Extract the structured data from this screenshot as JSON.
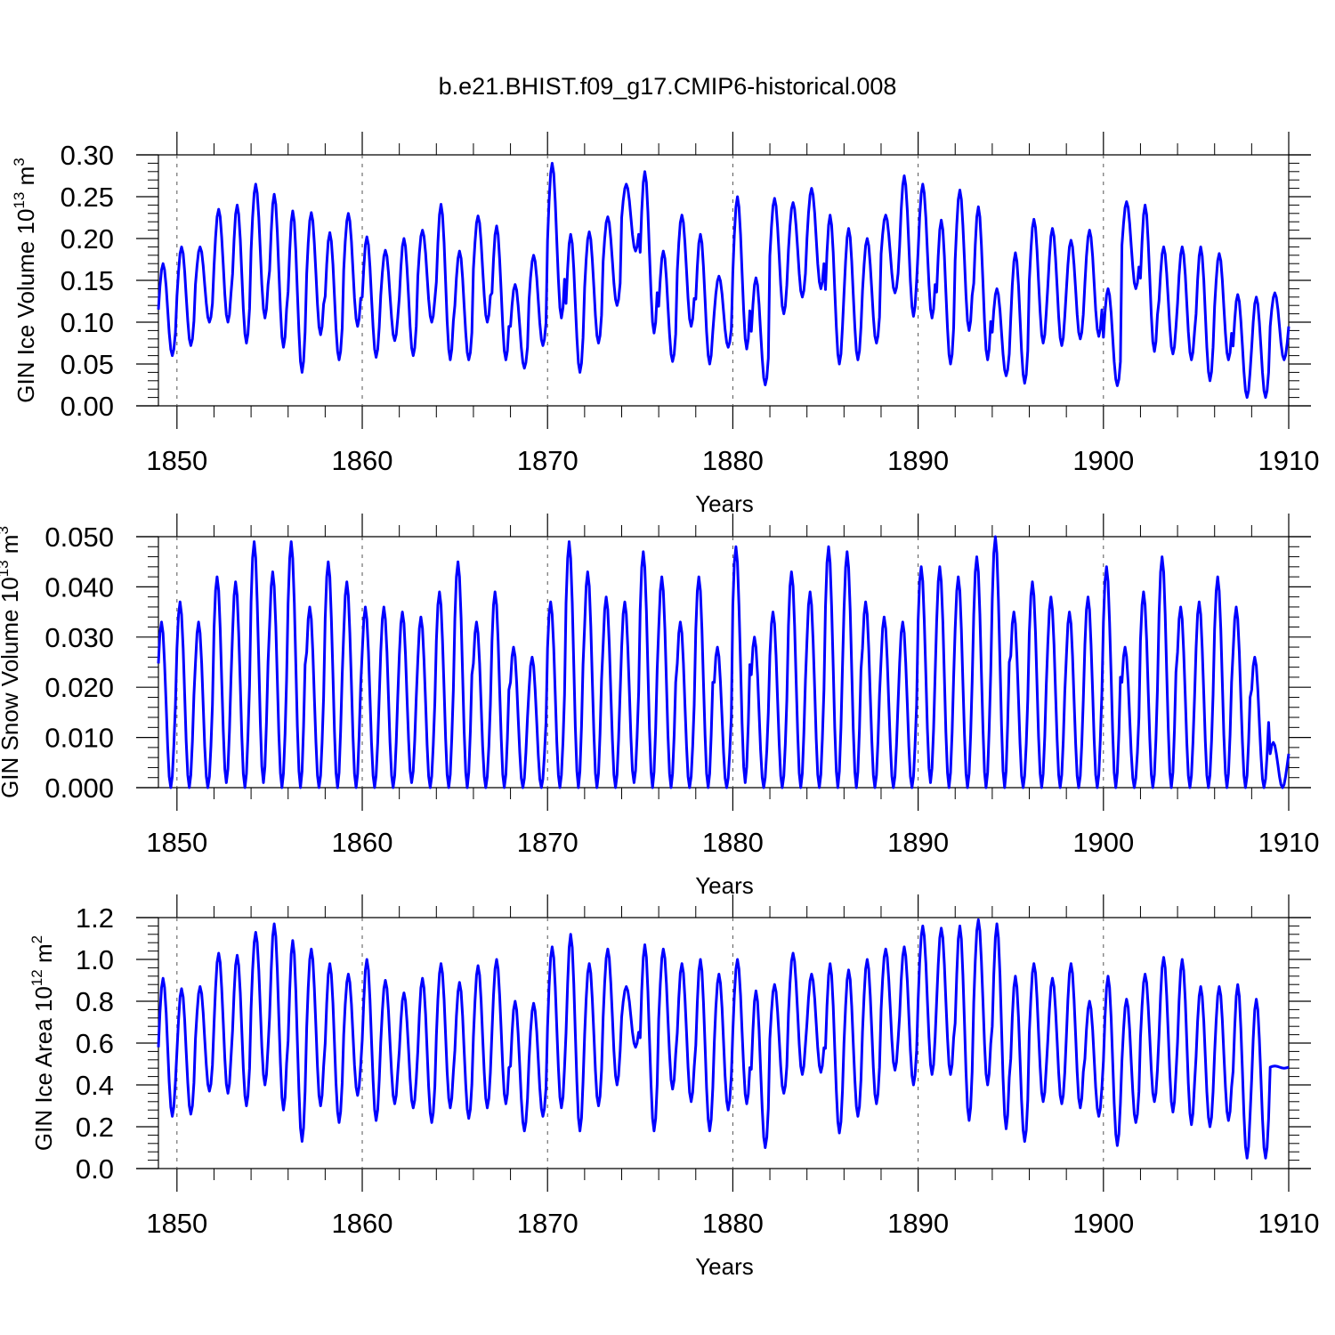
{
  "figure": {
    "title": "b.e21.BHIST.f09_g17.CMIP6-historical.008",
    "line_color": "#0000ff",
    "line_color_name": "blue"
  },
  "chart_data": [
    {
      "type": "line",
      "name": "ice-volume-panel",
      "title": "",
      "xlabel": "Years",
      "ylabel": "GIN Ice Volume 10",
      "ylabel_exponent": "13",
      "ylabel_unit": "m",
      "ylabel_unit_exponent": "3",
      "xlim": [
        1849,
        1910
      ],
      "ylim": [
        0.0,
        0.3
      ],
      "yticks": [
        0.0,
        0.05,
        0.1,
        0.15,
        0.2,
        0.25,
        0.3
      ],
      "ytick_labels": [
        "0.00",
        "0.05",
        "0.10",
        "0.15",
        "0.20",
        "0.25",
        "0.30"
      ],
      "xticks": [
        1850,
        1860,
        1870,
        1880,
        1890,
        1900,
        1910
      ],
      "xtick_labels": [
        "1850",
        "1860",
        "1870",
        "1880",
        "1890",
        "1900",
        "1910"
      ],
      "grid": "vertical dashed at decades",
      "seasonal_min_month": 9,
      "series": [
        {
          "name": "GIN Ice Volume",
          "annual_max": [
            0.17,
            0.19,
            0.19,
            0.235,
            0.24,
            0.265,
            0.253,
            0.233,
            0.231,
            0.207,
            0.23,
            0.202,
            0.186,
            0.2,
            0.21,
            0.241,
            0.185,
            0.227,
            0.215,
            0.145,
            0.18,
            0.29,
            0.205,
            0.208,
            0.226,
            0.265,
            0.28,
            0.185,
            0.228,
            0.205,
            0.155,
            0.25,
            0.153,
            0.248,
            0.243,
            0.26,
            0.228,
            0.212,
            0.2,
            0.228,
            0.275,
            0.265,
            0.222,
            0.258,
            0.238,
            0.14,
            0.183,
            0.223,
            0.212,
            0.198,
            0.21,
            0.14,
            0.244,
            0.24,
            0.19,
            0.19,
            0.19,
            0.182,
            0.133,
            0.13,
            0.135
          ],
          "annual_min": [
            0.06,
            0.072,
            0.1,
            0.1,
            0.075,
            0.105,
            0.07,
            0.04,
            0.085,
            0.055,
            0.095,
            0.058,
            0.078,
            0.06,
            0.1,
            0.055,
            0.055,
            0.1,
            0.055,
            0.045,
            0.072,
            0.105,
            0.04,
            0.075,
            0.12,
            0.185,
            0.087,
            0.053,
            0.095,
            0.05,
            0.07,
            0.068,
            0.025,
            0.11,
            0.13,
            0.14,
            0.05,
            0.055,
            0.075,
            0.135,
            0.107,
            0.105,
            0.05,
            0.09,
            0.055,
            0.036,
            0.027,
            0.075,
            0.072,
            0.08,
            0.083,
            0.024,
            0.14,
            0.065,
            0.062,
            0.055,
            0.03,
            0.055,
            0.01,
            0.01,
            0.055
          ]
        }
      ]
    },
    {
      "type": "line",
      "name": "snow-volume-panel",
      "title": "",
      "xlabel": "Years",
      "ylabel": "GIN Snow Volume 10",
      "ylabel_exponent": "13",
      "ylabel_unit": "m",
      "ylabel_unit_exponent": "3",
      "xlim": [
        1849,
        1910
      ],
      "ylim": [
        0.0,
        0.05
      ],
      "yticks": [
        0.0,
        0.01,
        0.02,
        0.03,
        0.04,
        0.05
      ],
      "ytick_labels": [
        "0.000",
        "0.010",
        "0.020",
        "0.030",
        "0.040",
        "0.050"
      ],
      "xticks": [
        1850,
        1860,
        1870,
        1880,
        1890,
        1900,
        1910
      ],
      "xtick_labels": [
        "1850",
        "1860",
        "1870",
        "1880",
        "1890",
        "1900",
        "1910"
      ],
      "grid": "vertical dashed at decades",
      "seasonal_min_month": 8,
      "series": [
        {
          "name": "GIN Snow Volume",
          "annual_max": [
            0.033,
            0.037,
            0.033,
            0.042,
            0.041,
            0.049,
            0.043,
            0.049,
            0.036,
            0.045,
            0.041,
            0.036,
            0.036,
            0.035,
            0.034,
            0.039,
            0.045,
            0.033,
            0.039,
            0.028,
            0.026,
            0.037,
            0.049,
            0.043,
            0.038,
            0.037,
            0.047,
            0.042,
            0.033,
            0.042,
            0.028,
            0.048,
            0.03,
            0.035,
            0.043,
            0.039,
            0.048,
            0.047,
            0.037,
            0.034,
            0.033,
            0.044,
            0.044,
            0.042,
            0.046,
            0.05,
            0.035,
            0.041,
            0.038,
            0.035,
            0.038,
            0.044,
            0.028,
            0.039,
            0.046,
            0.036,
            0.037,
            0.042,
            0.036,
            0.026,
            0.009
          ],
          "annual_min": [
            0.0,
            0.0,
            0.0,
            0.001,
            0.0,
            0.001,
            0.0,
            0.0,
            0.0,
            0.0,
            0.0,
            0.0,
            0.0,
            0.001,
            0.0,
            0.0,
            0.0,
            0.0,
            0.0,
            0.0,
            0.0,
            0.0,
            0.0,
            0.0,
            0.0,
            0.001,
            0.0,
            0.0,
            0.0,
            0.0,
            0.0,
            0.001,
            0.0,
            0.0,
            0.0,
            0.0,
            0.0,
            0.0,
            0.0,
            0.0,
            0.0,
            0.001,
            0.0,
            0.0,
            0.0,
            0.0,
            0.0,
            0.0,
            0.0,
            0.0,
            0.0,
            0.0,
            0.0,
            0.0,
            0.0,
            0.0,
            0.0,
            0.0,
            0.0,
            0.0,
            0.0
          ]
        }
      ]
    },
    {
      "type": "line",
      "name": "ice-area-panel",
      "title": "",
      "xlabel": "Years",
      "ylabel": "GIN Ice Area 10",
      "ylabel_exponent": "12",
      "ylabel_unit": "m",
      "ylabel_unit_exponent": "2",
      "xlim": [
        1849,
        1910
      ],
      "ylim": [
        0.0,
        1.2
      ],
      "yticks": [
        0.0,
        0.2,
        0.4,
        0.6,
        0.8,
        1.0,
        1.2
      ],
      "ytick_labels": [
        "0.0",
        "0.2",
        "0.4",
        "0.6",
        "0.8",
        "1.0",
        "1.2"
      ],
      "xticks": [
        1850,
        1860,
        1870,
        1880,
        1890,
        1900,
        1910
      ],
      "xtick_labels": [
        "1850",
        "1860",
        "1870",
        "1880",
        "1890",
        "1900",
        "1910"
      ],
      "grid": "vertical dashed at decades",
      "seasonal_min_month": 9,
      "series": [
        {
          "name": "GIN Ice Area",
          "annual_max": [
            0.91,
            0.86,
            0.87,
            1.03,
            1.02,
            1.13,
            1.17,
            1.09,
            1.05,
            0.98,
            0.93,
            1.0,
            0.9,
            0.84,
            0.91,
            0.98,
            0.89,
            0.97,
            1.0,
            0.8,
            0.79,
            1.06,
            1.12,
            0.98,
            1.05,
            0.87,
            1.07,
            1.05,
            0.98,
            1.0,
            0.93,
            1.0,
            0.85,
            0.88,
            1.03,
            0.93,
            0.98,
            0.95,
            1.0,
            1.05,
            1.06,
            1.16,
            1.15,
            1.16,
            1.19,
            1.17,
            0.92,
            0.98,
            0.91,
            0.98,
            0.8,
            0.92,
            0.81,
            0.93,
            1.01,
            1.0,
            0.87,
            0.87,
            0.88,
            0.81,
            0.49
          ],
          "annual_min": [
            0.25,
            0.26,
            0.37,
            0.36,
            0.3,
            0.4,
            0.28,
            0.13,
            0.3,
            0.22,
            0.35,
            0.23,
            0.31,
            0.29,
            0.22,
            0.29,
            0.24,
            0.29,
            0.31,
            0.18,
            0.25,
            0.29,
            0.18,
            0.3,
            0.4,
            0.58,
            0.18,
            0.38,
            0.32,
            0.18,
            0.28,
            0.31,
            0.1,
            0.36,
            0.45,
            0.46,
            0.17,
            0.25,
            0.31,
            0.47,
            0.4,
            0.45,
            0.45,
            0.23,
            0.4,
            0.19,
            0.13,
            0.32,
            0.31,
            0.29,
            0.25,
            0.11,
            0.22,
            0.32,
            0.27,
            0.21,
            0.2,
            0.23,
            0.05,
            0.05,
            0.48
          ]
        }
      ]
    }
  ]
}
